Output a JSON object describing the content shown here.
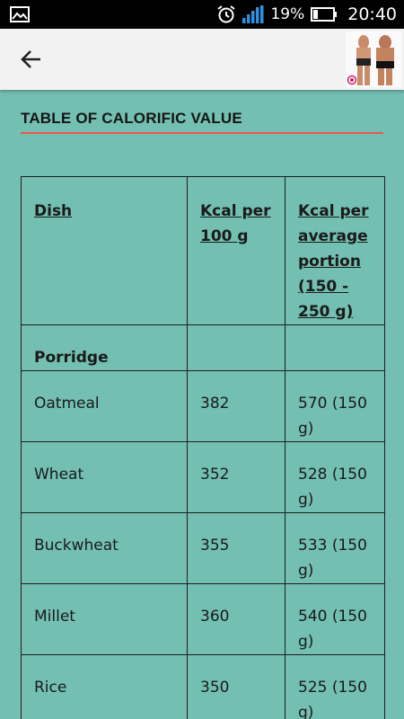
{
  "status_bar": {
    "battery_percent": "19%",
    "time": "20:40",
    "icons": [
      "image-icon",
      "alarm-icon",
      "signal-icon",
      "battery-icon"
    ]
  },
  "app_bar": {
    "back_icon": "arrow-left-icon",
    "thumbnail": "app-thumbnail"
  },
  "page": {
    "heading": "TABLE OF CALORIFIC VALUE",
    "accent_color": "#e8584a",
    "background_color": "#73bfb2"
  },
  "table": {
    "headers": [
      "Dish",
      "Kcal per 100 g",
      "Kcal per average portion (150 - 250 g)"
    ],
    "section": "Porridge",
    "rows": [
      {
        "dish": "Oatmeal",
        "kcal100": "382",
        "portion": "570 (150 g)"
      },
      {
        "dish": "Wheat",
        "kcal100": "352",
        "portion": "528 (150 g)"
      },
      {
        "dish": "Buckwheat",
        "kcal100": "355",
        "portion": "533 (150 g)"
      },
      {
        "dish": "Millet",
        "kcal100": "360",
        "portion": "540 (150 g)"
      },
      {
        "dish": "Rice",
        "kcal100": "350",
        "portion": "525 (150 g)"
      }
    ]
  }
}
